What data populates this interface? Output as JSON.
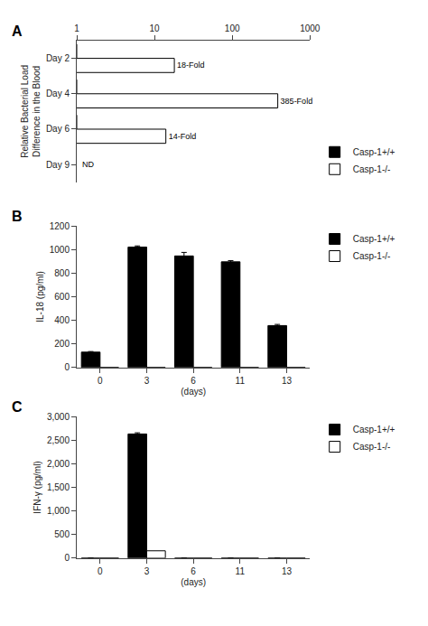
{
  "chart_data": [
    {
      "type": "bar",
      "title": "A",
      "orientation": "horizontal",
      "log": "x",
      "categories": [
        "Day 2",
        "Day 4",
        "Day 6",
        "Day 9"
      ],
      "series": [
        {
          "name": "Casp-1+/+",
          "color": "#000000",
          "values": [
            1,
            1,
            1,
            null
          ]
        },
        {
          "name": "Casp-1-/-",
          "color": "#ffffff",
          "values": [
            18,
            385,
            14,
            null
          ],
          "value_labels": [
            "18-Fold",
            "385-Fold",
            "14-Fold",
            "ND"
          ]
        }
      ],
      "xlim": [
        1,
        1000
      ],
      "xticks": [
        1,
        10,
        100,
        1000
      ],
      "ylabel": "Relative Bacterial Load\nDifference in the Blood",
      "data_labels": true,
      "legend": "lower right",
      "grid": false
    },
    {
      "type": "bar",
      "title": "B",
      "categories": [
        "0",
        "3",
        "6",
        "11",
        "13"
      ],
      "series": [
        {
          "name": "Casp-1+/+",
          "color": "#000000",
          "values": [
            130,
            1020,
            945,
            895,
            355
          ],
          "errors": [
            5,
            10,
            30,
            10,
            10
          ]
        },
        {
          "name": "Casp-1-/-",
          "color": "#ffffff",
          "values": [
            0,
            0,
            0,
            0,
            0
          ]
        }
      ],
      "ylim": [
        0,
        1200
      ],
      "yticks": [
        0,
        200,
        400,
        600,
        800,
        1000,
        1200
      ],
      "xlabel": "(days)",
      "ylabel": "IL-18 (pg/ml)",
      "legend": "upper right",
      "grid": false
    },
    {
      "type": "bar",
      "title": "C",
      "categories": [
        "0",
        "3",
        "6",
        "11",
        "13"
      ],
      "series": [
        {
          "name": "Casp-1+/+",
          "color": "#000000",
          "values": [
            0,
            2630,
            0,
            0,
            0
          ],
          "errors": [
            0,
            25,
            0,
            0,
            0
          ]
        },
        {
          "name": "Casp-1-/-",
          "color": "#ffffff",
          "values": [
            0,
            155,
            0,
            0,
            0
          ]
        }
      ],
      "ylim": [
        0,
        3000
      ],
      "yticks": [
        0,
        500,
        {
          "value": 1000,
          "label": "1,000"
        },
        {
          "value": 1500,
          "label": "1,500"
        },
        {
          "value": 2000,
          "label": "2,000"
        },
        {
          "value": 2500,
          "label": "2,500"
        },
        {
          "value": 3000,
          "label": "3,000"
        }
      ],
      "xlabel": "(days)",
      "ylabel": "IFN-γ (pg/ml)",
      "legend": "upper right",
      "grid": false
    }
  ]
}
